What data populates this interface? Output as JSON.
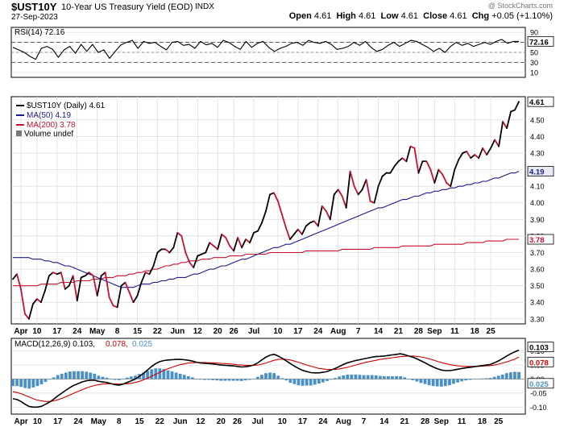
{
  "header": {
    "symbol": "$UST10Y",
    "description": "10-Year US Treasury Yield (EOD)",
    "exchange": "INDX",
    "date": "27-Sep-2023",
    "open_label": "Open",
    "open": "4.61",
    "high_label": "High",
    "high": "4.61",
    "low_label": "Low",
    "low": "4.61",
    "close_label": "Close",
    "close": "4.61",
    "chg_label": "Chg",
    "chg": "+0.05 (+1.10%)",
    "credit": "@ StockCharts.com"
  },
  "colors": {
    "price": "#000000",
    "ma50": "#1a1a8c",
    "ma200": "#c8102e",
    "down": "#c8102e",
    "macd": "#000000",
    "signal": "#d10000",
    "hist": "#4a90c8",
    "rsi": "#000000",
    "grid": "#d9d9d9"
  },
  "chart_data": [
    {
      "type": "line",
      "panel": "rsi",
      "legend": "RSI(14) 72.16",
      "y_ticks": [
        90,
        70,
        50,
        30,
        10
      ],
      "ylim": [
        0,
        100
      ],
      "overbought": 70,
      "oversold": 30,
      "last_label": "72.16",
      "values": [
        60,
        55,
        50,
        42,
        36,
        58,
        62,
        56,
        40,
        55,
        62,
        48,
        66,
        52,
        66,
        50,
        55,
        38,
        52,
        65,
        70,
        74,
        58,
        72,
        68,
        70,
        62,
        55,
        70,
        72,
        64,
        66,
        58,
        72,
        65,
        68,
        60,
        74,
        70,
        62,
        56,
        72,
        60,
        68,
        72,
        60,
        52,
        58,
        62,
        68,
        70,
        64,
        74,
        70,
        68,
        72,
        66,
        56,
        58,
        62,
        70,
        64,
        72,
        60,
        52,
        56,
        64,
        70,
        62,
        68,
        74,
        72,
        66,
        60,
        52,
        58,
        50,
        62,
        70,
        64,
        68,
        62,
        66,
        70,
        66,
        72,
        76,
        68,
        72,
        72
      ]
    },
    {
      "type": "line",
      "panel": "price",
      "legend": {
        "price": "$UST10Y (Daily) 4.61",
        "ma50": "MA(50) 4.19",
        "ma200": "MA(200) 3.78",
        "volume": "Volume undef"
      },
      "y_ticks": [
        "4.50",
        "4.40",
        "4.30",
        "4.20",
        "4.10",
        "4.00",
        "3.90",
        "3.80",
        "3.70",
        "3.60",
        "3.50",
        "3.40",
        "3.30"
      ],
      "ylim": [
        3.27,
        4.64
      ],
      "last_labels": {
        "price": "4.61",
        "ma50": "4.19",
        "ma200": "3.78"
      },
      "x_labels": [
        "Apr",
        "10",
        "17",
        "24",
        "May",
        "8",
        "15",
        "22",
        "Jun",
        "12",
        "20",
        "26",
        "Jul",
        "10",
        "17",
        "24",
        "Aug",
        "7",
        "14",
        "21",
        "28",
        "Sep",
        "11",
        "18",
        "25"
      ],
      "x_label_index": [
        2,
        6,
        11,
        16,
        21,
        26,
        31,
        36,
        41,
        46,
        51,
        55,
        60,
        66,
        71,
        76,
        81,
        86,
        91,
        96,
        101,
        105,
        110,
        115,
        119
      ],
      "price": [
        3.54,
        3.57,
        3.48,
        3.33,
        3.3,
        3.39,
        3.42,
        3.4,
        3.47,
        3.56,
        3.58,
        3.57,
        3.58,
        3.48,
        3.5,
        3.56,
        3.41,
        3.55,
        3.56,
        3.58,
        3.56,
        3.44,
        3.56,
        3.58,
        3.43,
        3.38,
        3.37,
        3.5,
        3.52,
        3.46,
        3.4,
        3.44,
        3.52,
        3.58,
        3.57,
        3.62,
        3.7,
        3.72,
        3.72,
        3.7,
        3.73,
        3.82,
        3.8,
        3.7,
        3.64,
        3.61,
        3.68,
        3.69,
        3.7,
        3.76,
        3.74,
        3.72,
        3.81,
        3.79,
        3.74,
        3.71,
        3.79,
        3.73,
        3.78,
        3.76,
        3.82,
        3.83,
        3.88,
        3.95,
        4.05,
        4.06,
        4.01,
        3.93,
        3.85,
        3.78,
        3.81,
        3.84,
        3.81,
        3.86,
        3.88,
        3.89,
        3.86,
        3.98,
        3.95,
        3.9,
        4.05,
        4.08,
        4.04,
        3.97,
        4.19,
        4.1,
        4.05,
        4.08,
        4.14,
        4.01,
        4.0,
        4.1,
        4.16,
        4.18,
        4.18,
        4.22,
        4.25,
        4.27,
        4.25,
        4.34,
        4.33,
        4.18,
        4.25,
        4.25,
        4.2,
        4.12,
        4.2,
        4.17,
        4.12,
        4.1,
        4.2,
        4.26,
        4.3,
        4.31,
        4.27,
        4.29,
        4.27,
        4.33,
        4.29,
        4.33,
        4.38,
        4.34,
        4.49,
        4.45,
        4.55,
        4.56,
        4.61
      ],
      "ma50": [
        3.67,
        3.67,
        3.67,
        3.67,
        3.67,
        3.66,
        3.66,
        3.66,
        3.65,
        3.65,
        3.64,
        3.64,
        3.63,
        3.62,
        3.62,
        3.61,
        3.6,
        3.59,
        3.58,
        3.57,
        3.56,
        3.55,
        3.54,
        3.53,
        3.52,
        3.51,
        3.5,
        3.49,
        3.49,
        3.49,
        3.49,
        3.5,
        3.51,
        3.51,
        3.51,
        3.52,
        3.52,
        3.53,
        3.53,
        3.54,
        3.54,
        3.55,
        3.55,
        3.55,
        3.56,
        3.57,
        3.57,
        3.58,
        3.59,
        3.6,
        3.6,
        3.61,
        3.62,
        3.62,
        3.63,
        3.64,
        3.65,
        3.66,
        3.66,
        3.67,
        3.68,
        3.69,
        3.7,
        3.71,
        3.72,
        3.73,
        3.73,
        3.74,
        3.75,
        3.75,
        3.76,
        3.77,
        3.78,
        3.79,
        3.8,
        3.81,
        3.82,
        3.83,
        3.84,
        3.85,
        3.86,
        3.87,
        3.88,
        3.89,
        3.9,
        3.91,
        3.92,
        3.93,
        3.94,
        3.95,
        3.96,
        3.97,
        3.97,
        3.98,
        3.99,
        4.0,
        4.01,
        4.02,
        4.02,
        4.03,
        4.04,
        4.04,
        4.05,
        4.06,
        4.06,
        4.07,
        4.07,
        4.08,
        4.08,
        4.09,
        4.09,
        4.1,
        4.1,
        4.11,
        4.11,
        4.12,
        4.12,
        4.13,
        4.13,
        4.14,
        4.15,
        4.15,
        4.16,
        4.17,
        4.18,
        4.18,
        4.19
      ],
      "ma200": [
        3.5,
        3.5,
        3.5,
        3.5,
        3.5,
        3.5,
        3.5,
        3.51,
        3.51,
        3.51,
        3.51,
        3.51,
        3.52,
        3.52,
        3.52,
        3.52,
        3.53,
        3.53,
        3.53,
        3.53,
        3.54,
        3.54,
        3.54,
        3.55,
        3.55,
        3.55,
        3.56,
        3.56,
        3.56,
        3.57,
        3.57,
        3.58,
        3.58,
        3.59,
        3.59,
        3.6,
        3.6,
        3.61,
        3.62,
        3.62,
        3.63,
        3.63,
        3.64,
        3.64,
        3.65,
        3.65,
        3.65,
        3.66,
        3.66,
        3.66,
        3.67,
        3.67,
        3.67,
        3.67,
        3.68,
        3.68,
        3.68,
        3.68,
        3.69,
        3.69,
        3.69,
        3.69,
        3.69,
        3.69,
        3.7,
        3.7,
        3.7,
        3.7,
        3.7,
        3.7,
        3.7,
        3.7,
        3.7,
        3.71,
        3.71,
        3.71,
        3.71,
        3.71,
        3.71,
        3.71,
        3.71,
        3.71,
        3.72,
        3.72,
        3.72,
        3.72,
        3.72,
        3.72,
        3.72,
        3.72,
        3.73,
        3.73,
        3.73,
        3.73,
        3.73,
        3.73,
        3.73,
        3.74,
        3.74,
        3.74,
        3.74,
        3.74,
        3.74,
        3.74,
        3.74,
        3.75,
        3.75,
        3.75,
        3.75,
        3.75,
        3.75,
        3.75,
        3.75,
        3.76,
        3.76,
        3.76,
        3.76,
        3.76,
        3.77,
        3.77,
        3.77,
        3.77,
        3.77,
        3.78,
        3.78,
        3.78,
        3.78
      ]
    },
    {
      "type": "line",
      "panel": "macd",
      "legend": {
        "title": "MACD(12,26,9) 0.103,",
        "signal": "0.078,",
        "hist": "0.025"
      },
      "y_ticks": [
        "0.10",
        "0.05",
        "0.00",
        "-0.05",
        "-0.10"
      ],
      "ylim": [
        -0.125,
        0.145
      ],
      "last_labels": {
        "macd": "0.103",
        "signal": "0.078",
        "hist": "0.025"
      },
      "x_labels": [
        "Apr",
        "10",
        "17",
        "24",
        "May",
        "8",
        "15",
        "22",
        "Jun",
        "12",
        "20",
        "26",
        "Jul",
        "10",
        "17",
        "24",
        "Aug",
        "7",
        "14",
        "21",
        "28",
        "Sep",
        "11",
        "18",
        "25"
      ],
      "x_label_index": [
        2,
        6,
        11,
        16,
        21,
        26,
        31,
        36,
        41,
        46,
        51,
        55,
        60,
        66,
        71,
        76,
        81,
        86,
        91,
        96,
        101,
        105,
        110,
        115,
        119
      ],
      "macd": [
        -0.07,
        -0.073,
        -0.08,
        -0.09,
        -0.098,
        -0.1,
        -0.1,
        -0.097,
        -0.09,
        -0.082,
        -0.072,
        -0.06,
        -0.05,
        -0.04,
        -0.03,
        -0.022,
        -0.016,
        -0.01,
        -0.006,
        -0.004,
        -0.004,
        -0.008,
        -0.01,
        -0.012,
        -0.016,
        -0.02,
        -0.022,
        -0.018,
        -0.012,
        -0.006,
        0.0,
        0.01,
        0.02,
        0.032,
        0.045,
        0.055,
        0.062,
        0.066,
        0.068,
        0.069,
        0.07,
        0.07,
        0.069,
        0.067,
        0.064,
        0.06,
        0.057,
        0.056,
        0.055,
        0.054,
        0.052,
        0.05,
        0.049,
        0.048,
        0.047,
        0.045,
        0.043,
        0.044,
        0.046,
        0.05,
        0.058,
        0.068,
        0.078,
        0.085,
        0.088,
        0.082,
        0.074,
        0.065,
        0.055,
        0.046,
        0.038,
        0.031,
        0.027,
        0.023,
        0.022,
        0.022,
        0.024,
        0.027,
        0.032,
        0.038,
        0.045,
        0.052,
        0.058,
        0.062,
        0.066,
        0.069,
        0.072,
        0.075,
        0.078,
        0.08,
        0.081,
        0.082,
        0.084,
        0.086,
        0.088,
        0.09,
        0.087,
        0.082,
        0.078,
        0.072,
        0.065,
        0.058,
        0.05,
        0.043,
        0.037,
        0.032,
        0.03,
        0.03,
        0.032,
        0.035,
        0.038,
        0.04,
        0.042,
        0.044,
        0.046,
        0.048,
        0.05,
        0.052,
        0.058,
        0.065,
        0.073,
        0.082,
        0.09,
        0.097,
        0.103
      ],
      "signal": [
        -0.045,
        -0.048,
        -0.052,
        -0.058,
        -0.064,
        -0.07,
        -0.075,
        -0.078,
        -0.08,
        -0.08,
        -0.078,
        -0.074,
        -0.069,
        -0.063,
        -0.057,
        -0.05,
        -0.044,
        -0.038,
        -0.032,
        -0.027,
        -0.023,
        -0.02,
        -0.018,
        -0.017,
        -0.017,
        -0.017,
        -0.018,
        -0.018,
        -0.017,
        -0.015,
        -0.012,
        -0.008,
        -0.003,
        0.003,
        0.01,
        0.017,
        0.024,
        0.031,
        0.037,
        0.042,
        0.047,
        0.051,
        0.054,
        0.057,
        0.058,
        0.059,
        0.059,
        0.059,
        0.058,
        0.058,
        0.057,
        0.056,
        0.055,
        0.054,
        0.053,
        0.051,
        0.05,
        0.049,
        0.049,
        0.049,
        0.05,
        0.053,
        0.057,
        0.062,
        0.067,
        0.07,
        0.071,
        0.07,
        0.068,
        0.064,
        0.06,
        0.055,
        0.05,
        0.046,
        0.042,
        0.038,
        0.036,
        0.034,
        0.034,
        0.034,
        0.036,
        0.039,
        0.042,
        0.046,
        0.05,
        0.054,
        0.058,
        0.061,
        0.064,
        0.067,
        0.07,
        0.072,
        0.074,
        0.076,
        0.078,
        0.08,
        0.081,
        0.082,
        0.082,
        0.081,
        0.079,
        0.076,
        0.072,
        0.068,
        0.063,
        0.059,
        0.055,
        0.052,
        0.049,
        0.047,
        0.046,
        0.045,
        0.045,
        0.045,
        0.045,
        0.046,
        0.047,
        0.048,
        0.05,
        0.053,
        0.057,
        0.061,
        0.066,
        0.071,
        0.078
      ],
      "hist": [
        -0.025,
        -0.025,
        -0.028,
        -0.032,
        -0.034,
        -0.03,
        -0.025,
        -0.019,
        -0.01,
        -0.002,
        0.006,
        0.014,
        0.019,
        0.023,
        0.027,
        0.028,
        0.028,
        0.028,
        0.026,
        0.023,
        0.019,
        0.012,
        0.008,
        0.005,
        0.001,
        -0.003,
        -0.004,
        0.0,
        0.005,
        0.009,
        0.012,
        0.018,
        0.023,
        0.029,
        0.035,
        0.038,
        0.038,
        0.035,
        0.031,
        0.027,
        0.023,
        0.019,
        0.015,
        0.01,
        0.006,
        0.001,
        -0.002,
        -0.003,
        -0.003,
        -0.004,
        -0.005,
        -0.006,
        -0.006,
        -0.006,
        -0.006,
        -0.006,
        -0.007,
        -0.005,
        -0.003,
        0.001,
        0.008,
        0.015,
        0.021,
        0.023,
        0.021,
        0.012,
        0.003,
        -0.005,
        -0.013,
        -0.018,
        -0.022,
        -0.024,
        -0.023,
        -0.023,
        -0.02,
        -0.016,
        -0.012,
        -0.007,
        -0.002,
        0.004,
        0.009,
        0.013,
        0.016,
        0.016,
        0.016,
        0.015,
        0.014,
        0.014,
        0.014,
        0.013,
        0.011,
        0.01,
        0.01,
        0.01,
        0.01,
        0.01,
        0.006,
        0.0,
        -0.004,
        -0.009,
        -0.014,
        -0.018,
        -0.022,
        -0.025,
        -0.026,
        -0.027,
        -0.025,
        -0.022,
        -0.017,
        -0.012,
        -0.008,
        -0.005,
        -0.003,
        -0.001,
        0.001,
        0.002,
        0.003,
        0.004,
        0.008,
        0.012,
        0.016,
        0.021,
        0.024,
        0.026,
        0.025
      ]
    }
  ]
}
